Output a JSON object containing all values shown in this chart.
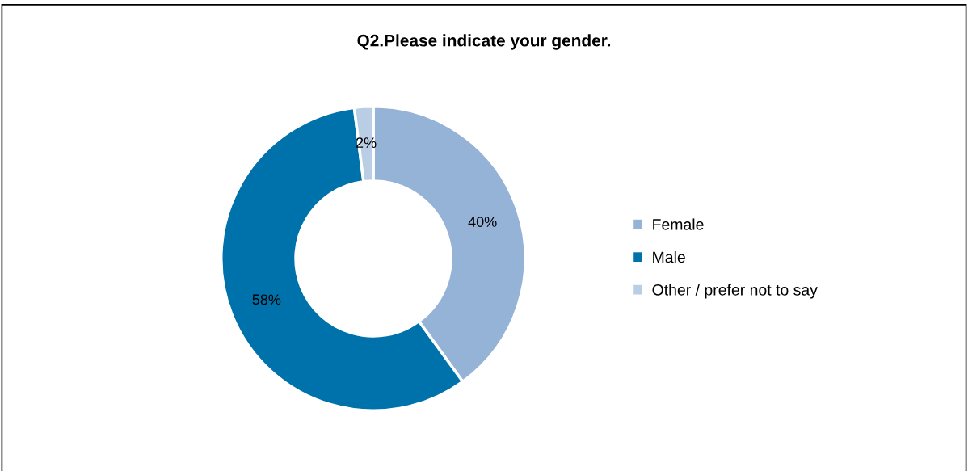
{
  "chart_data": {
    "type": "donut",
    "title": "Q2.Please indicate your gender.",
    "categories": [
      "Female",
      "Male",
      "Other / prefer not to say"
    ],
    "values": [
      40,
      58,
      2
    ],
    "colors": [
      "#95b3d7",
      "#0072ab",
      "#b9cde5"
    ],
    "value_labels": [
      "40%",
      "58%",
      "2%"
    ],
    "legend": "right"
  }
}
